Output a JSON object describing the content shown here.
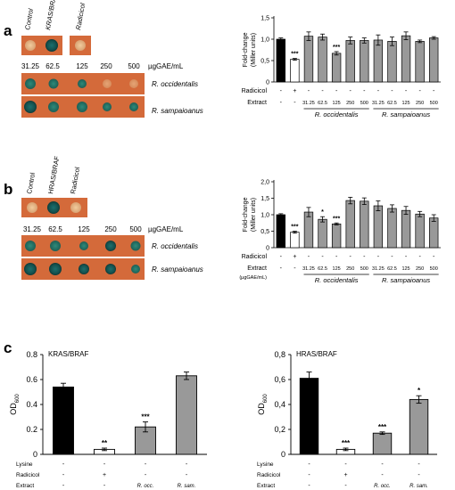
{
  "panels": {
    "a": {
      "label": "a",
      "plates": {
        "top_labels": [
          "Control",
          "KRAS/BRAF",
          "Radicicol"
        ],
        "concentrations": [
          "31.25",
          "62.5",
          "125",
          "250",
          "500"
        ],
        "unit": "µgGAE/mL",
        "rows": [
          "R. occidentalis",
          "R. sampaioanus"
        ]
      }
    },
    "b": {
      "label": "b",
      "plates": {
        "top_labels": [
          "Control",
          "HRAS/BRAF",
          "Radicicol"
        ],
        "concentrations": [
          "31.25",
          "62.5",
          "125",
          "250",
          "500"
        ],
        "unit": "µgGAE/mL",
        "rows": [
          "R. occidentalis",
          "R. sampaioanus"
        ]
      }
    },
    "c": {
      "label": "c"
    }
  },
  "shared_labels": {
    "fold_ylabel": "Fold-change (Miller units)",
    "radicicol": "Radicicol",
    "extract": "Extract",
    "extract_unit": "(µgGAE/mL)",
    "lysine": "Lysine",
    "od_ylabel": "OD",
    "od_sub": "600",
    "occ": "R. occidentalis",
    "sam": "R. sampaioanus"
  },
  "chart_data": [
    {
      "id": "a-right",
      "type": "bar",
      "ylabel": "Fold-change (Miller units)",
      "ylim": [
        0,
        1.5
      ],
      "yticks": [
        "0",
        "0,5",
        "1,0",
        "1,5"
      ],
      "categories": [
        "Control",
        "Radicicol",
        "31.25",
        "62.5",
        "125",
        "250",
        "500",
        "31.25",
        "62.5",
        "125",
        "250",
        "500"
      ],
      "values": [
        1.0,
        0.53,
        1.07,
        1.05,
        0.67,
        0.97,
        0.97,
        0.98,
        0.95,
        1.08,
        0.95,
        1.03
      ],
      "errors": [
        0.03,
        0.02,
        0.1,
        0.07,
        0.04,
        0.08,
        0.06,
        0.12,
        0.1,
        0.09,
        0.03,
        0.03
      ],
      "colors": [
        "#000000",
        "#ffffff",
        "#999999",
        "#999999",
        "#999999",
        "#999999",
        "#999999",
        "#999999",
        "#999999",
        "#999999",
        "#999999",
        "#999999"
      ],
      "significance": [
        "",
        "***",
        "",
        "",
        "***",
        "",
        "",
        "",
        "",
        "",
        "",
        ""
      ],
      "radicicol_row": [
        "-",
        "+",
        "-",
        "-",
        "-",
        "-",
        "-",
        "-",
        "-",
        "-",
        "-",
        "-"
      ],
      "extract_row": [
        "-",
        "-",
        "31.25",
        "62.5",
        "125",
        "250",
        "500",
        "31.25",
        "62.5",
        "125",
        "250",
        "500"
      ],
      "groups": [
        "R. occidentalis",
        "R. sampaioanus"
      ]
    },
    {
      "id": "b-right",
      "type": "bar",
      "ylabel": "Fold-change (Miller units)",
      "ylim": [
        0,
        2.0
      ],
      "yticks": [
        "0",
        "0,5",
        "1,0",
        "1,5",
        "2,0"
      ],
      "categories": [
        "Control",
        "Radicicol",
        "31.25",
        "62.5",
        "125",
        "250",
        "500",
        "31.25",
        "62.5",
        "125",
        "250",
        "500"
      ],
      "values": [
        1.0,
        0.47,
        1.08,
        0.86,
        0.72,
        1.43,
        1.41,
        1.27,
        1.19,
        1.13,
        1.02,
        0.9
      ],
      "errors": [
        0.03,
        0.03,
        0.14,
        0.08,
        0.03,
        0.1,
        0.1,
        0.15,
        0.11,
        0.12,
        0.08,
        0.1
      ],
      "colors": [
        "#000000",
        "#ffffff",
        "#999999",
        "#999999",
        "#999999",
        "#999999",
        "#999999",
        "#999999",
        "#999999",
        "#999999",
        "#999999",
        "#999999"
      ],
      "significance": [
        "",
        "***",
        "",
        "*",
        "***",
        "",
        "",
        "",
        "",
        "",
        "",
        ""
      ],
      "radicicol_row": [
        "-",
        "+",
        "-",
        "-",
        "-",
        "-",
        "-",
        "-",
        "-",
        "-",
        "-",
        "-"
      ],
      "extract_row": [
        "-",
        "-",
        "31.25",
        "62.5",
        "125",
        "250",
        "500",
        "31.25",
        "62.5",
        "125",
        "250",
        "500"
      ],
      "groups": [
        "R. occidentalis",
        "R. sampaioanus"
      ]
    },
    {
      "id": "c-left",
      "type": "bar",
      "title": "KRAS/BRAF",
      "ylabel": "OD600",
      "ylim": [
        0,
        0.8
      ],
      "yticks": [
        "0",
        "0.2",
        "0.4",
        "0.6",
        "0.8"
      ],
      "categories": [
        "Control",
        "Radicicol",
        "R. occ.",
        "R. sam."
      ],
      "values": [
        0.54,
        0.04,
        0.22,
        0.63
      ],
      "errors": [
        0.03,
        0.01,
        0.04,
        0.03
      ],
      "colors": [
        "#000000",
        "#ffffff",
        "#999999",
        "#999999"
      ],
      "significance": [
        "",
        "**",
        "***",
        ""
      ],
      "lysine_row": [
        "-",
        "-",
        "-",
        "-"
      ],
      "radicicol_row": [
        "-",
        "+",
        "-",
        "-"
      ],
      "extract_row": [
        "-",
        "-",
        "R. occ.",
        "R. sam."
      ]
    },
    {
      "id": "c-right",
      "type": "bar",
      "title": "HRAS/BRAF",
      "ylabel": "OD600",
      "ylim": [
        0,
        0.8
      ],
      "yticks": [
        "0",
        "0,2",
        "0,4",
        "0,6",
        "0,8"
      ],
      "categories": [
        "Control",
        "Radicicol",
        "R. occ.",
        "R. sam."
      ],
      "values": [
        0.61,
        0.04,
        0.17,
        0.44
      ],
      "errors": [
        0.05,
        0.01,
        0.01,
        0.03
      ],
      "colors": [
        "#000000",
        "#ffffff",
        "#999999",
        "#999999"
      ],
      "significance": [
        "",
        "***",
        "***",
        "*"
      ],
      "lysine_row": [
        "-",
        "-",
        "-",
        "-"
      ],
      "radicicol_row": [
        "-",
        "+",
        "-",
        "-"
      ],
      "extract_row": [
        "-",
        "-",
        "R. occ.",
        "R. sam."
      ]
    }
  ]
}
